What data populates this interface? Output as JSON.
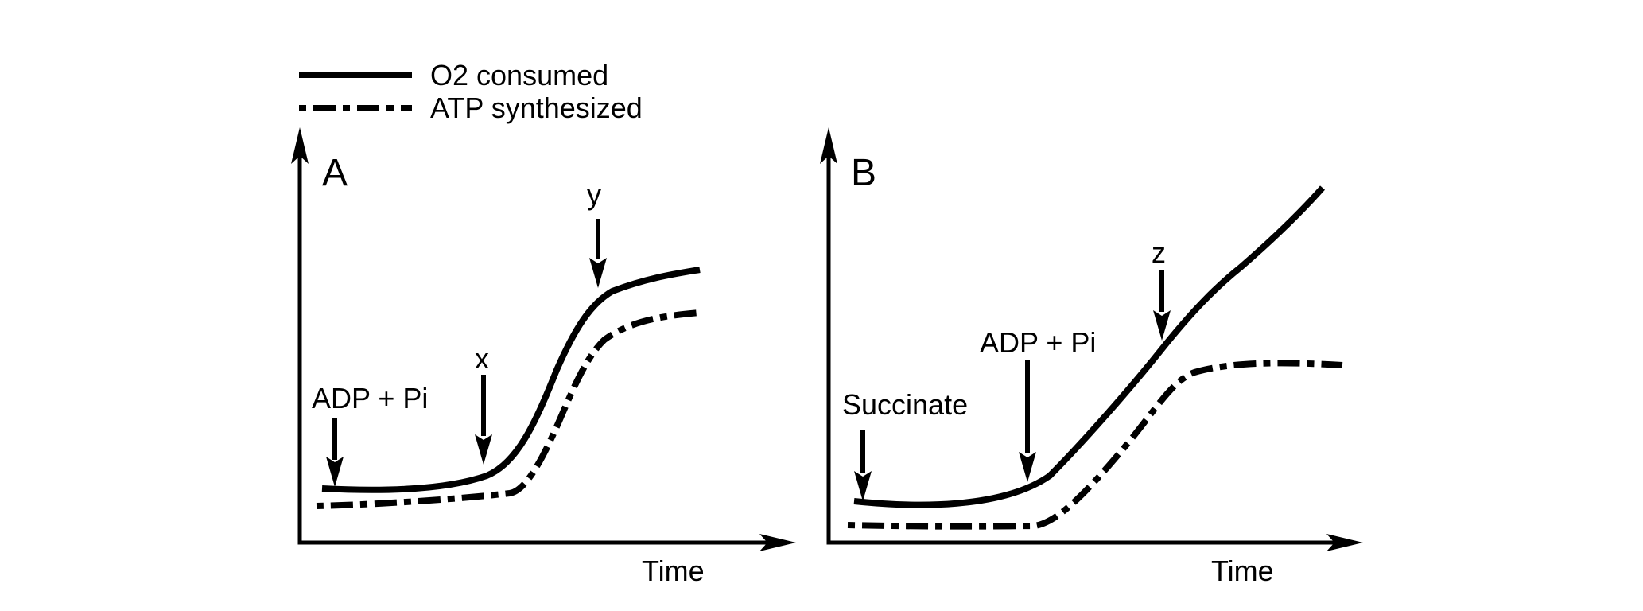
{
  "legend": {
    "o2": {
      "label": "O2 consumed",
      "style": "solid"
    },
    "atp": {
      "label": "ATP synthesized",
      "style": "dash-dot"
    }
  },
  "panel_a": {
    "letter": "A",
    "x_axis_label": "Time",
    "annotations": {
      "adp_pi": "ADP + Pi",
      "x": "x",
      "y": "y"
    }
  },
  "panel_b": {
    "letter": "B",
    "x_axis_label": "Time",
    "annotations": {
      "succinate": "Succinate",
      "adp_pi": "ADP + Pi",
      "z": "z"
    }
  },
  "colors": {
    "ink": "#000000",
    "background": "#ffffff"
  },
  "icons": [
    "down-arrow-icon",
    "axis-arrowhead-icon"
  ]
}
